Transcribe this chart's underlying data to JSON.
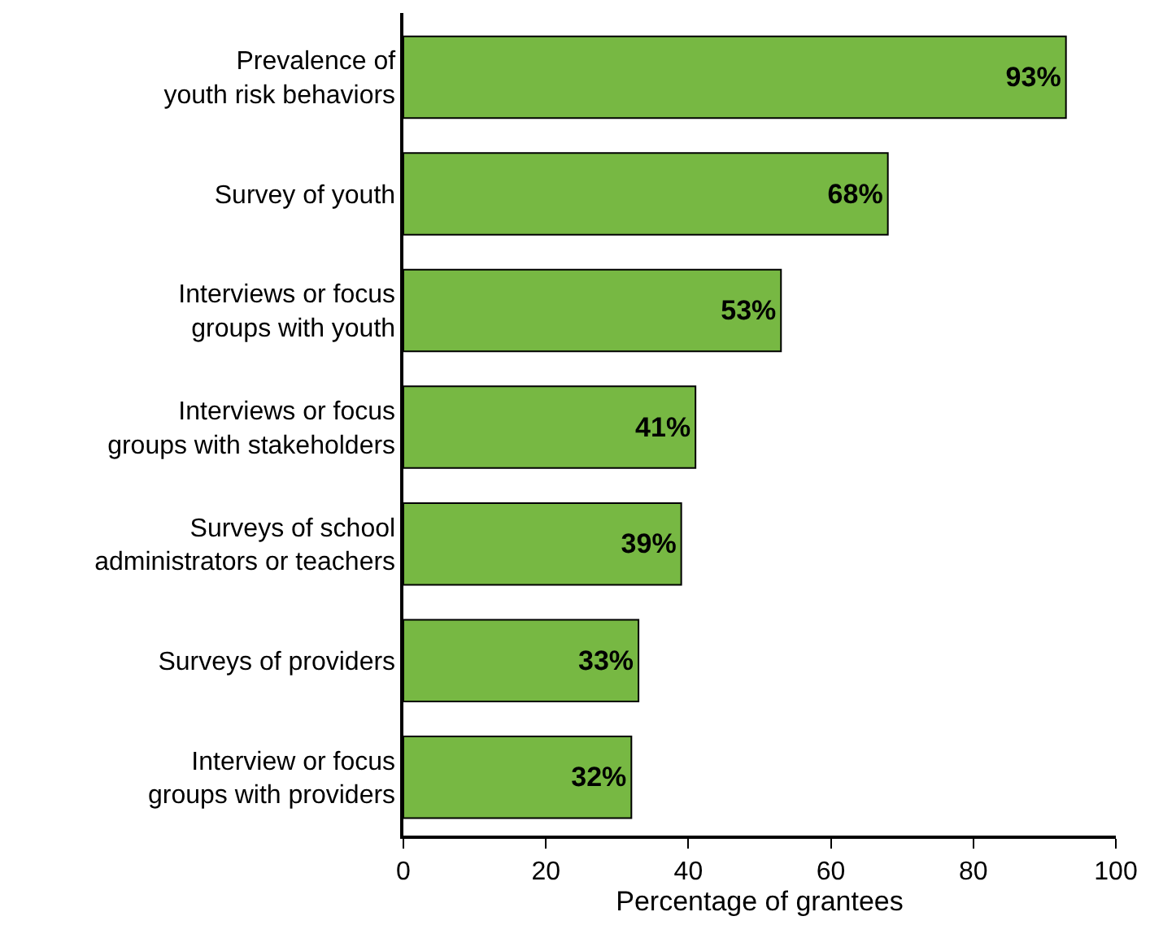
{
  "chart_data": {
    "type": "bar",
    "orientation": "horizontal",
    "xlabel": "Percentage of grantees",
    "categories": [
      "Prevalence of\nyouth risk behaviors",
      "Survey of youth",
      "Interviews or focus\ngroups with youth",
      "Interviews or focus\ngroups with stakeholders",
      "Surveys of school\nadministrators or teachers",
      "Surveys of providers",
      "Interview or focus\ngroups with providers"
    ],
    "values": [
      93,
      68,
      53,
      41,
      39,
      33,
      32
    ],
    "value_labels": [
      "93%",
      "68%",
      "53%",
      "41%",
      "39%",
      "33%",
      "32%"
    ],
    "color": "#77b843",
    "xlim": [
      0,
      100
    ],
    "xticks": [
      0,
      20,
      40,
      60,
      80,
      100
    ]
  }
}
